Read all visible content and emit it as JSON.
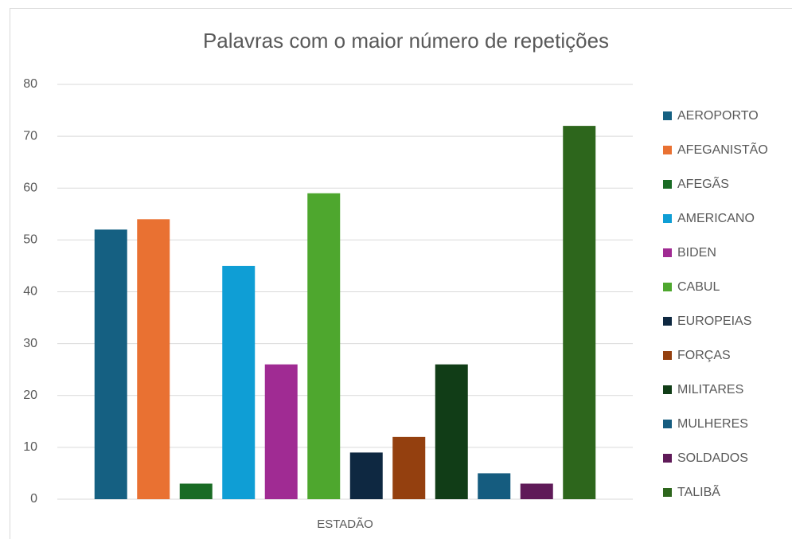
{
  "chart_data": {
    "type": "bar",
    "title": "Palavras com o maior número de repetições",
    "categories": [
      "ESTADÃO"
    ],
    "series": [
      {
        "name": "AEROPORTO",
        "color": "#156082",
        "values": [
          52
        ]
      },
      {
        "name": "AFEGANISTÃO",
        "color": "#e97132",
        "values": [
          54
        ]
      },
      {
        "name": "AFEGÃS",
        "color": "#196b24",
        "values": [
          3
        ]
      },
      {
        "name": "AMERICANO",
        "color": "#0f9ed5",
        "values": [
          45
        ]
      },
      {
        "name": "BIDEN",
        "color": "#a02b93",
        "values": [
          26
        ]
      },
      {
        "name": "CABUL",
        "color": "#4ea72e",
        "values": [
          59
        ]
      },
      {
        "name": "EUROPEIAS",
        "color": "#0e2841",
        "values": [
          9
        ]
      },
      {
        "name": "FORÇAS",
        "color": "#94400f",
        "values": [
          12
        ]
      },
      {
        "name": "MILITARES",
        "color": "#113d17",
        "values": [
          26
        ]
      },
      {
        "name": "MULHERES",
        "color": "#155c7f",
        "values": [
          5
        ]
      },
      {
        "name": "SOLDADOS",
        "color": "#5f1a58",
        "values": [
          3
        ]
      },
      {
        "name": "TALIBÃ",
        "color": "#2d661c",
        "values": [
          72
        ]
      }
    ],
    "ylim": [
      0,
      80
    ],
    "yticks": [
      0,
      10,
      20,
      30,
      40,
      50,
      60,
      70,
      80
    ],
    "grid": true,
    "legend": "right"
  }
}
